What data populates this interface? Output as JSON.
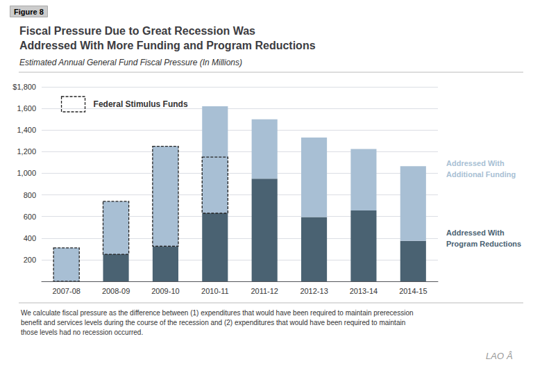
{
  "chart_data": {
    "type": "bar",
    "stacked": true,
    "title": "Fiscal Pressure Due to Great Recession Was\nAddressed With More Funding and Program Reductions",
    "subtitle": "Estimated Annual General Fund Fiscal Pressure (In Millions)",
    "figure_label": "Figure 8",
    "footnote": "We calculate fiscal pressure as the difference between (1) expenditures that would have been required to maintain prerecession\nbenefit and services levels during the course of the recession and (2) expenditures that would have been required to maintain\nthose levels had no recession occurred.",
    "logo": [
      "LAO",
      "Â"
    ],
    "categories": [
      "2007-08",
      "2008-09",
      "2009-10",
      "2010-11",
      "2011-12",
      "2012-13",
      "2013-14",
      "2014-15"
    ],
    "series": [
      {
        "name": "Addressed With\nProgram Reductions",
        "color": "#4a6272",
        "values": [
          0,
          250,
          325,
          630,
          950,
          595,
          655,
          375
        ]
      },
      {
        "name": "Addressed With\nAdditional Funding",
        "color": "#a8bfd4",
        "values": [
          310,
          490,
          925,
          990,
          550,
          735,
          570,
          690
        ]
      }
    ],
    "stimulus": {
      "name": "Federal Stimulus Funds",
      "bottom": [
        0,
        250,
        325,
        630
      ],
      "top": [
        310,
        740,
        1250,
        1150
      ]
    },
    "ylim": [
      0,
      1800
    ],
    "yticks": [
      {
        "value": 0,
        "label": ""
      },
      200,
      400,
      600,
      800,
      {
        "value": 1000,
        "label": "1,000"
      },
      {
        "value": 1200,
        "label": "1,200"
      },
      {
        "value": 1400,
        "label": "1,400"
      },
      {
        "value": 1600,
        "label": "1,600"
      },
      {
        "value": 1800,
        "label": "$1,800"
      }
    ],
    "grid": true
  }
}
